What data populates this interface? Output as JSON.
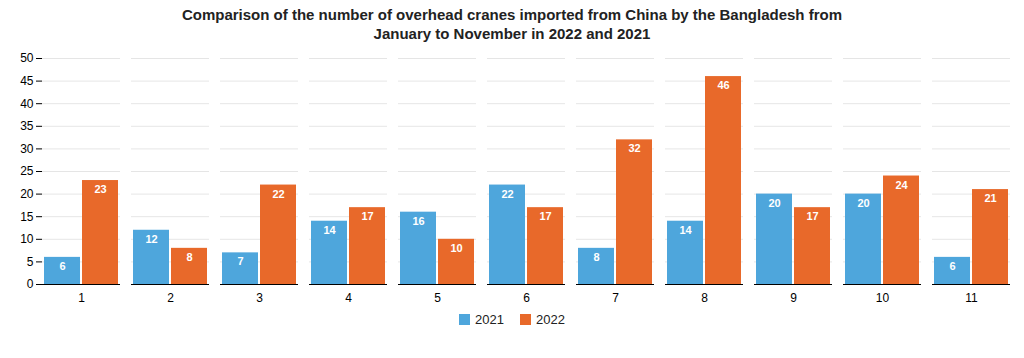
{
  "chart_data": {
    "type": "bar",
    "title": "Comparison of the number of overhead cranes imported from China by the Bangladesh from\nJanuary to November in 2022 and 2021",
    "categories": [
      "1",
      "2",
      "3",
      "4",
      "5",
      "6",
      "7",
      "8",
      "9",
      "10",
      "11"
    ],
    "series": [
      {
        "name": "2021",
        "color": "#4ea6dc",
        "values": [
          6,
          12,
          7,
          14,
          16,
          22,
          8,
          14,
          20,
          20,
          6
        ]
      },
      {
        "name": "2022",
        "color": "#e8692a",
        "values": [
          23,
          8,
          22,
          17,
          10,
          17,
          32,
          46,
          17,
          24,
          21
        ]
      }
    ],
    "ylim": [
      0,
      50
    ],
    "yticks": [
      0,
      5,
      10,
      15,
      20,
      25,
      30,
      35,
      40,
      45,
      50
    ],
    "grid": true,
    "data_labels": true,
    "legend": "bottom"
  }
}
